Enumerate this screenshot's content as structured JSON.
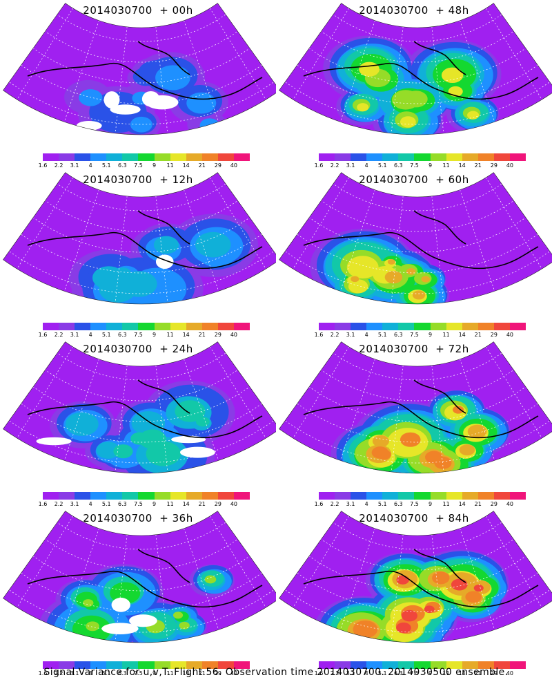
{
  "panels": [
    {
      "title": "2014030700  + 00h",
      "lead_hours": 0
    },
    {
      "title": "2014030700  + 48h",
      "lead_hours": 48
    },
    {
      "title": "2014030700  + 12h",
      "lead_hours": 12
    },
    {
      "title": "2014030700  + 60h",
      "lead_hours": 60
    },
    {
      "title": "2014030700  + 24h",
      "lead_hours": 24
    },
    {
      "title": "2014030700  + 72h",
      "lead_hours": 72
    },
    {
      "title": "2014030700  + 36h",
      "lead_hours": 36
    },
    {
      "title": "2014030700  + 84h",
      "lead_hours": 84
    }
  ],
  "colorbar": {
    "labels": [
      "1.6",
      "2.2",
      "3.1",
      "4",
      "5.1",
      "6.3",
      "7.5",
      "9",
      "11",
      "14",
      "21",
      "29",
      "40"
    ],
    "colors": [
      "#a020f0",
      "#8a3be6",
      "#2a52e8",
      "#1e90ff",
      "#10b0d8",
      "#12c8a8",
      "#14d830",
      "#96dc28",
      "#e6e628",
      "#e6aa28",
      "#f08228",
      "#f0463c",
      "#f0147a"
    ]
  },
  "footer": "Signal Variance for u,v,T. Flight 56. Observation time 2014030700. 2014030500 ensemble."
}
